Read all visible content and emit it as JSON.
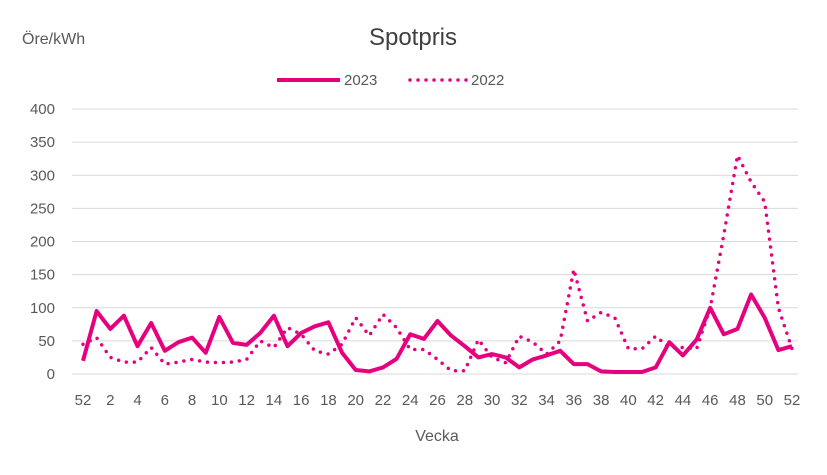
{
  "chart_data": {
    "type": "line",
    "title": "Spotpris",
    "ylabel": "Öre/kWh",
    "xlabel": "Vecka",
    "ylim": [
      0,
      400
    ],
    "yticks": [
      0,
      50,
      100,
      150,
      200,
      250,
      300,
      350,
      400
    ],
    "grid": true,
    "legend_position": "top-center",
    "x": [
      "52",
      "1",
      "2",
      "3",
      "4",
      "5",
      "6",
      "7",
      "8",
      "9",
      "10",
      "11",
      "12",
      "13",
      "14",
      "15",
      "16",
      "17",
      "18",
      "19",
      "20",
      "21",
      "22",
      "23",
      "24",
      "25",
      "26",
      "27",
      "28",
      "29",
      "30",
      "31",
      "32",
      "33",
      "34",
      "35",
      "36",
      "37",
      "38",
      "39",
      "40",
      "41",
      "42",
      "43",
      "44",
      "45",
      "46",
      "47",
      "48",
      "49",
      "50",
      "51",
      "52"
    ],
    "x_tick_labels": [
      "52",
      "2",
      "4",
      "6",
      "8",
      "10",
      "12",
      "14",
      "16",
      "18",
      "20",
      "22",
      "24",
      "26",
      "28",
      "30",
      "32",
      "34",
      "36",
      "38",
      "40",
      "42",
      "44",
      "46",
      "48",
      "50",
      "52"
    ],
    "series": [
      {
        "name": "2023",
        "style": "solid",
        "color": "#e6007e",
        "values": [
          20,
          95,
          68,
          88,
          42,
          77,
          35,
          48,
          55,
          32,
          86,
          47,
          44,
          62,
          88,
          42,
          62,
          72,
          78,
          32,
          6,
          4,
          10,
          23,
          60,
          53,
          80,
          58,
          42,
          25,
          30,
          25,
          10,
          22,
          28,
          35,
          15,
          15,
          4,
          3,
          3,
          3,
          10,
          48,
          28,
          52,
          100,
          60,
          68,
          120,
          85,
          36,
          42
        ]
      },
      {
        "name": "2022",
        "style": "dotted",
        "color": "#e6007e",
        "values": [
          45,
          55,
          25,
          18,
          18,
          40,
          15,
          18,
          22,
          18,
          17,
          18,
          22,
          50,
          40,
          70,
          60,
          35,
          30,
          45,
          85,
          58,
          90,
          70,
          37,
          37,
          22,
          5,
          5,
          52,
          25,
          17,
          57,
          48,
          30,
          50,
          158,
          80,
          93,
          85,
          38,
          38,
          57,
          40,
          40,
          38,
          100,
          210,
          330,
          290,
          260,
          100,
          38
        ]
      }
    ]
  }
}
